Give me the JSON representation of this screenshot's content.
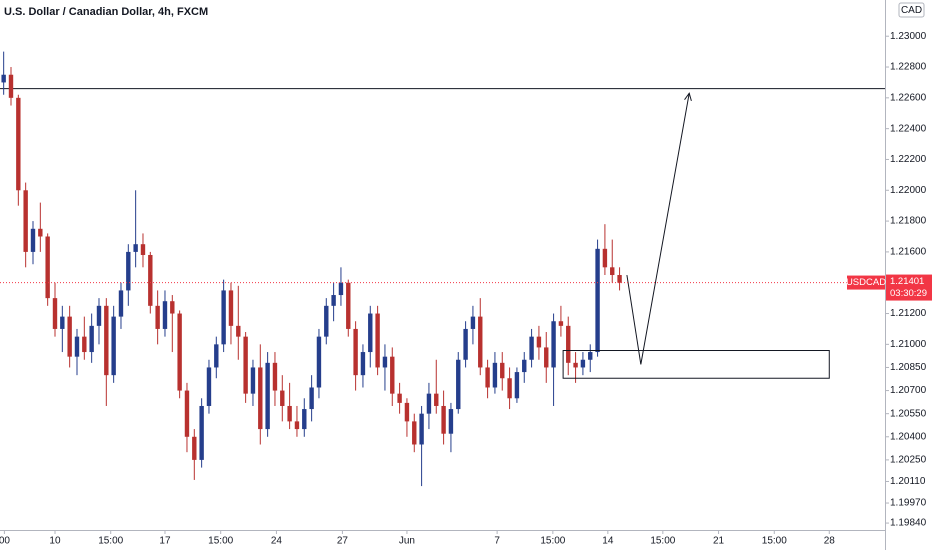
{
  "chart_data": {
    "type": "candlestick",
    "title": "U.S. Dollar / Canadian Dollar, 4h, FXCM",
    "currency": "CAD",
    "symbol": "USDCAD",
    "last_price": 1.21401,
    "countdown": "03:30:29",
    "up_color": "#253e8c",
    "down_color": "#b8312f",
    "last_price_color": "#f23645",
    "ylim": [
      1.19795,
      1.23235
    ],
    "yticks": [
      {
        "value": 1.23,
        "label": "1.23000"
      },
      {
        "value": 1.228,
        "label": "1.22800"
      },
      {
        "value": 1.226,
        "label": "1.22600"
      },
      {
        "value": 1.224,
        "label": "1.22400"
      },
      {
        "value": 1.222,
        "label": "1.22200"
      },
      {
        "value": 1.22,
        "label": "1.22000"
      },
      {
        "value": 1.218,
        "label": "1.21800"
      },
      {
        "value": 1.216,
        "label": "1.21600"
      },
      {
        "value": 1.212,
        "label": "1.21200"
      },
      {
        "value": 1.21,
        "label": "1.21000"
      },
      {
        "value": 1.2085,
        "label": "1.20850"
      },
      {
        "value": 1.207,
        "label": "1.20700"
      },
      {
        "value": 1.2055,
        "label": "1.20550"
      },
      {
        "value": 1.204,
        "label": "1.20400"
      },
      {
        "value": 1.2025,
        "label": "1.20250"
      },
      {
        "value": 1.2011,
        "label": "1.20110"
      },
      {
        "value": 1.1997,
        "label": "1.19970"
      },
      {
        "value": 1.1984,
        "label": "1.19840"
      }
    ],
    "xlim": [
      0,
      120.7
    ],
    "xticks": [
      {
        "value": 0.6,
        "label": "00"
      },
      {
        "value": 7.5,
        "label": "10"
      },
      {
        "value": 15.1,
        "label": "15:00"
      },
      {
        "value": 22.5,
        "label": "17"
      },
      {
        "value": 30.1,
        "label": "15:00"
      },
      {
        "value": 37.7,
        "label": "24"
      },
      {
        "value": 46.7,
        "label": "27"
      },
      {
        "value": 55.5,
        "label": "Jun"
      },
      {
        "value": 67.8,
        "label": "7"
      },
      {
        "value": 75.4,
        "label": "15:00"
      },
      {
        "value": 82.9,
        "label": "14"
      },
      {
        "value": 90.4,
        "label": "15:00"
      },
      {
        "value": 98,
        "label": "21"
      },
      {
        "value": 105.6,
        "label": "15:00"
      },
      {
        "value": 113.1,
        "label": "28"
      }
    ],
    "level": 1.2266,
    "zone": {
      "x": [
        76.8,
        113.1
      ],
      "y": [
        1.2096,
        1.2078
      ]
    },
    "projection": {
      "x": [
        85.5,
        87.4,
        94.0
      ],
      "y": [
        1.2145,
        1.2087,
        1.2263
      ]
    },
    "ohlc": [
      [
        1.227,
        1.229,
        1.2262,
        1.2275
      ],
      [
        1.2275,
        1.228,
        1.2255,
        1.226
      ],
      [
        1.226,
        1.2262,
        1.219,
        1.22
      ],
      [
        1.22,
        1.2205,
        1.215,
        1.216
      ],
      [
        1.216,
        1.218,
        1.2152,
        1.2175
      ],
      [
        1.2175,
        1.2192,
        1.216,
        1.217
      ],
      [
        1.217,
        1.2172,
        1.2125,
        1.213
      ],
      [
        1.213,
        1.214,
        1.2105,
        1.211
      ],
      [
        1.211,
        1.2125,
        1.2095,
        1.2118
      ],
      [
        1.2118,
        1.2125,
        1.2085,
        1.2092
      ],
      [
        1.2092,
        1.211,
        1.208,
        1.2105
      ],
      [
        1.2105,
        1.2118,
        1.209,
        1.2095
      ],
      [
        1.2095,
        1.212,
        1.2088,
        1.2112
      ],
      [
        1.2112,
        1.213,
        1.21,
        1.2125
      ],
      [
        1.2125,
        1.213,
        1.206,
        1.208
      ],
      [
        1.208,
        1.2125,
        1.2075,
        1.2118
      ],
      [
        1.2118,
        1.214,
        1.211,
        1.2135
      ],
      [
        1.2135,
        1.2165,
        1.2125,
        1.216
      ],
      [
        1.216,
        1.22,
        1.215,
        1.2165
      ],
      [
        1.2165,
        1.2172,
        1.215,
        1.2158
      ],
      [
        1.2158,
        1.216,
        1.212,
        1.2125
      ],
      [
        1.2125,
        1.2135,
        1.21,
        1.211
      ],
      [
        1.211,
        1.2135,
        1.2105,
        1.2128
      ],
      [
        1.2128,
        1.2132,
        1.2095,
        1.212
      ],
      [
        1.212,
        1.2122,
        1.2065,
        1.207
      ],
      [
        1.207,
        1.2075,
        1.203,
        1.204
      ],
      [
        1.204,
        1.2045,
        1.2012,
        1.2025
      ],
      [
        1.2025,
        1.2065,
        1.202,
        1.206
      ],
      [
        1.206,
        1.209,
        1.2055,
        1.2085
      ],
      [
        1.2085,
        1.2105,
        1.2078,
        1.21
      ],
      [
        1.21,
        1.2142,
        1.2095,
        1.2135
      ],
      [
        1.2135,
        1.214,
        1.21,
        1.2112
      ],
      [
        1.2112,
        1.2138,
        1.209,
        1.2105
      ],
      [
        1.2105,
        1.2108,
        1.2062,
        1.2068
      ],
      [
        1.2068,
        1.209,
        1.206,
        1.2085
      ],
      [
        1.2085,
        1.21,
        1.2035,
        1.2045
      ],
      [
        1.2045,
        1.2095,
        1.204,
        1.2088
      ],
      [
        1.2088,
        1.2095,
        1.206,
        1.207
      ],
      [
        1.207,
        1.208,
        1.205,
        1.206
      ],
      [
        1.206,
        1.2075,
        1.2045,
        1.205
      ],
      [
        1.205,
        1.206,
        1.204,
        1.2045
      ],
      [
        1.2045,
        1.2065,
        1.204,
        1.2058
      ],
      [
        1.2058,
        1.208,
        1.205,
        1.2072
      ],
      [
        1.2072,
        1.211,
        1.2065,
        1.2105
      ],
      [
        1.2105,
        1.213,
        1.21,
        1.2125
      ],
      [
        1.2125,
        1.214,
        1.2115,
        1.2132
      ],
      [
        1.2132,
        1.215,
        1.2125,
        1.214
      ],
      [
        1.214,
        1.2142,
        1.2105,
        1.211
      ],
      [
        1.211,
        1.2115,
        1.207,
        1.208
      ],
      [
        1.208,
        1.21,
        1.2072,
        1.2095
      ],
      [
        1.2095,
        1.2125,
        1.2085,
        1.212
      ],
      [
        1.212,
        1.2125,
        1.208,
        1.2085
      ],
      [
        1.2085,
        1.21,
        1.207,
        1.2092
      ],
      [
        1.2092,
        1.2098,
        1.206,
        1.2068
      ],
      [
        1.2068,
        1.2075,
        1.2055,
        1.2062
      ],
      [
        1.2062,
        1.2065,
        1.204,
        1.205
      ],
      [
        1.205,
        1.2055,
        1.203,
        1.2035
      ],
      [
        1.2035,
        1.206,
        1.2008,
        1.2055
      ],
      [
        1.2055,
        1.2075,
        1.2045,
        1.2068
      ],
      [
        1.2068,
        1.209,
        1.2055,
        1.206
      ],
      [
        1.206,
        1.207,
        1.2035,
        1.2042
      ],
      [
        1.2042,
        1.2062,
        1.203,
        1.2058
      ],
      [
        1.2058,
        1.2095,
        1.2055,
        1.209
      ],
      [
        1.209,
        1.2115,
        1.2085,
        1.211
      ],
      [
        1.211,
        1.2125,
        1.21,
        1.2118
      ],
      [
        1.2118,
        1.213,
        1.208,
        1.2085
      ],
      [
        1.2085,
        1.209,
        1.2065,
        1.2072
      ],
      [
        1.2072,
        1.2095,
        1.2068,
        1.2088
      ],
      [
        1.2088,
        1.2095,
        1.207,
        1.2078
      ],
      [
        1.2078,
        1.2085,
        1.2058,
        1.2065
      ],
      [
        1.2065,
        1.2085,
        1.2062,
        1.2082
      ],
      [
        1.2082,
        1.2095,
        1.2075,
        1.209
      ],
      [
        1.209,
        1.211,
        1.2085,
        1.2105
      ],
      [
        1.2105,
        1.2112,
        1.209,
        1.2098
      ],
      [
        1.2098,
        1.2108,
        1.2075,
        1.2085
      ],
      [
        1.2085,
        1.212,
        1.206,
        1.2115
      ],
      [
        1.2115,
        1.2125,
        1.2105,
        1.2112
      ],
      [
        1.2112,
        1.2118,
        1.208,
        1.2088
      ],
      [
        1.2088,
        1.2095,
        1.2075,
        1.2085
      ],
      [
        1.2085,
        1.2095,
        1.208,
        1.209
      ],
      [
        1.209,
        1.21,
        1.2082,
        1.2095
      ],
      [
        1.2095,
        1.2168,
        1.2092,
        1.2162
      ],
      [
        1.2162,
        1.2178,
        1.2145,
        1.215
      ],
      [
        1.215,
        1.2168,
        1.214,
        1.2145
      ],
      [
        1.2145,
        1.215,
        1.2135,
        1.214
      ]
    ]
  }
}
